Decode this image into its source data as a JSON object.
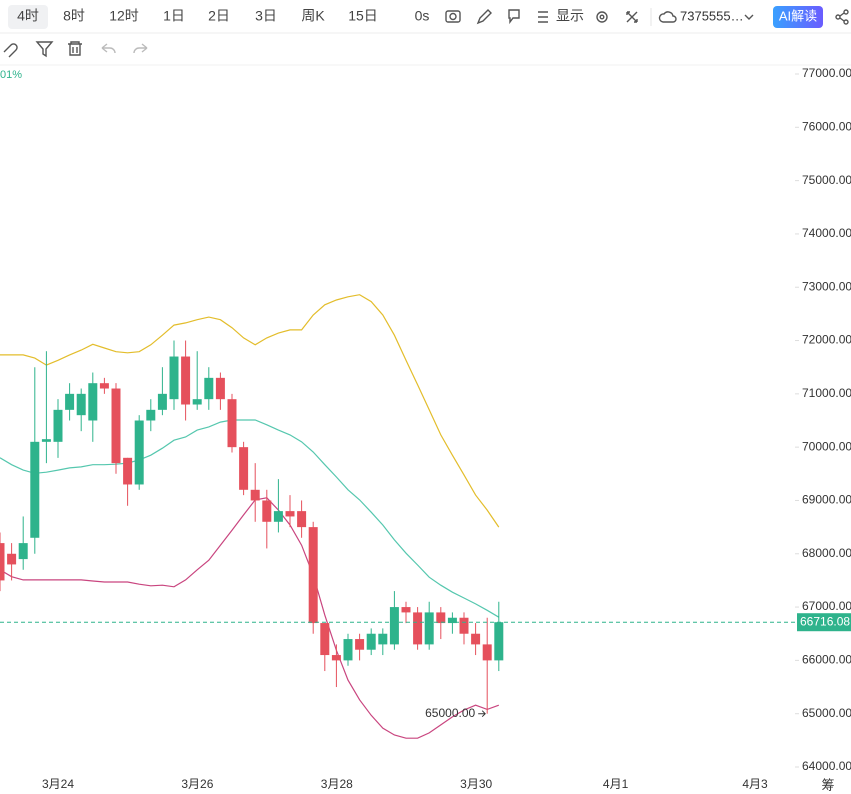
{
  "toolbar": {
    "intervals": [
      "4时",
      "8时",
      "12时",
      "1日",
      "2日",
      "3日",
      "周K",
      "15日"
    ],
    "delay": "0s",
    "display": "显示",
    "account": "7375555…",
    "ai": "AI解读"
  },
  "chart_data": {
    "type": "candlestick",
    "indicator_label": "01%",
    "corner_label": "筹",
    "up_color": "#2eb38c",
    "down_color": "#e5505c",
    "open": [
      68200,
      68000,
      67900,
      68300,
      70100,
      70100,
      70700,
      70600,
      70500,
      71200,
      71100,
      69800,
      69300,
      70500,
      70700,
      70900,
      71700,
      70800,
      70900,
      71300,
      70900,
      70000,
      69200,
      69000,
      68600,
      68800,
      68800,
      68500,
      66700,
      66100,
      66000,
      66400,
      66200,
      66300,
      66300,
      67000,
      66900,
      66300,
      66900,
      66700,
      66800,
      66500,
      66300,
      66000
    ],
    "high": [
      68400,
      68200,
      68700,
      71500,
      71800,
      70900,
      71200,
      71100,
      71400,
      71300,
      71200,
      69800,
      70600,
      70900,
      71500,
      72000,
      72000,
      71800,
      71500,
      71400,
      71000,
      70100,
      69700,
      69200,
      69400,
      69100,
      69000,
      68600,
      66700,
      66300,
      66500,
      66500,
      66600,
      66600,
      67300,
      67100,
      67000,
      67100,
      67000,
      66900,
      66900,
      66700,
      66800,
      67100
    ],
    "low": [
      67300,
      67500,
      67700,
      68000,
      69700,
      69800,
      70500,
      70300,
      70100,
      71000,
      69500,
      68900,
      69200,
      70300,
      70600,
      70700,
      70500,
      70700,
      70700,
      70700,
      69900,
      69100,
      68600,
      68100,
      68400,
      68500,
      68300,
      66500,
      65800,
      65500,
      65900,
      66000,
      66100,
      66100,
      66200,
      66700,
      66200,
      66200,
      66400,
      66500,
      66300,
      66100,
      65000,
      65800
    ],
    "close": [
      67500,
      67800,
      68200,
      70100,
      70150,
      70700,
      71000,
      71000,
      71200,
      71100,
      69700,
      69300,
      70500,
      70700,
      71000,
      71700,
      70800,
      70900,
      71300,
      70900,
      70000,
      69200,
      69000,
      68600,
      68800,
      68700,
      68500,
      66700,
      66100,
      66000,
      66400,
      66200,
      66500,
      66500,
      67000,
      66900,
      66300,
      66900,
      66700,
      66800,
      66500,
      66300,
      66000,
      66716.08
    ],
    "series": [
      {
        "color": "#e3bd2b",
        "values": [
          71730,
          71730,
          71730,
          71670,
          71540,
          71630,
          71730,
          71820,
          71930,
          71860,
          71790,
          71770,
          71790,
          71920,
          72100,
          72290,
          72330,
          72390,
          72440,
          72390,
          72240,
          72050,
          71920,
          72050,
          72140,
          72200,
          72200,
          72480,
          72670,
          72760,
          72820,
          72860,
          72730,
          72480,
          72100,
          71630,
          71170,
          70700,
          70230,
          69850,
          69480,
          69100,
          68820,
          68500
        ]
      },
      {
        "color": "#55c7ae",
        "values": [
          69800,
          69670,
          69570,
          69510,
          69530,
          69570,
          69610,
          69630,
          69670,
          69670,
          69680,
          69700,
          69760,
          69850,
          69980,
          70130,
          70190,
          70320,
          70380,
          70470,
          70510,
          70510,
          70510,
          70420,
          70320,
          70230,
          70100,
          69910,
          69670,
          69440,
          69200,
          69010,
          68780,
          68540,
          68260,
          68010,
          67790,
          67560,
          67410,
          67280,
          67170,
          67060,
          66940,
          66810
        ]
      },
      {
        "color": "#c9457f",
        "values": [
          67700,
          67570,
          67510,
          67510,
          67510,
          67510,
          67510,
          67510,
          67490,
          67470,
          67470,
          67470,
          67430,
          67400,
          67410,
          67380,
          67510,
          67700,
          67880,
          68160,
          68440,
          68730,
          69010,
          69050,
          68820,
          68540,
          68160,
          67600,
          66850,
          66190,
          65630,
          65260,
          64970,
          64730,
          64600,
          64540,
          64540,
          64640,
          64790,
          64940,
          65070,
          65160,
          65080,
          65160
        ]
      }
    ],
    "ylim": [
      64000,
      77000
    ],
    "yticks": [
      {
        "value": 64000,
        "label": "64000.00"
      },
      {
        "value": 65000,
        "label": "65000.00"
      },
      {
        "value": 66000,
        "label": "66000.00"
      },
      {
        "value": 67000,
        "label": "67000.00"
      },
      {
        "value": 68000,
        "label": "68000.00"
      },
      {
        "value": 69000,
        "label": "69000.00"
      },
      {
        "value": 70000,
        "label": "70000.00"
      },
      {
        "value": 71000,
        "label": "71000.00"
      },
      {
        "value": 72000,
        "label": "72000.00"
      },
      {
        "value": 73000,
        "label": "73000.00"
      },
      {
        "value": 74000,
        "label": "74000.00"
      },
      {
        "value": 75000,
        "label": "75000.00"
      },
      {
        "value": 76000,
        "label": "76000.00"
      },
      {
        "value": 77000,
        "label": "77000.00"
      }
    ],
    "xticks": [
      "3月24",
      "3月26",
      "3月28",
      "3月30",
      "4月1",
      "4月3"
    ],
    "last_price": 66716.08,
    "annotation": {
      "value": 65000,
      "label": "65000.00"
    }
  }
}
